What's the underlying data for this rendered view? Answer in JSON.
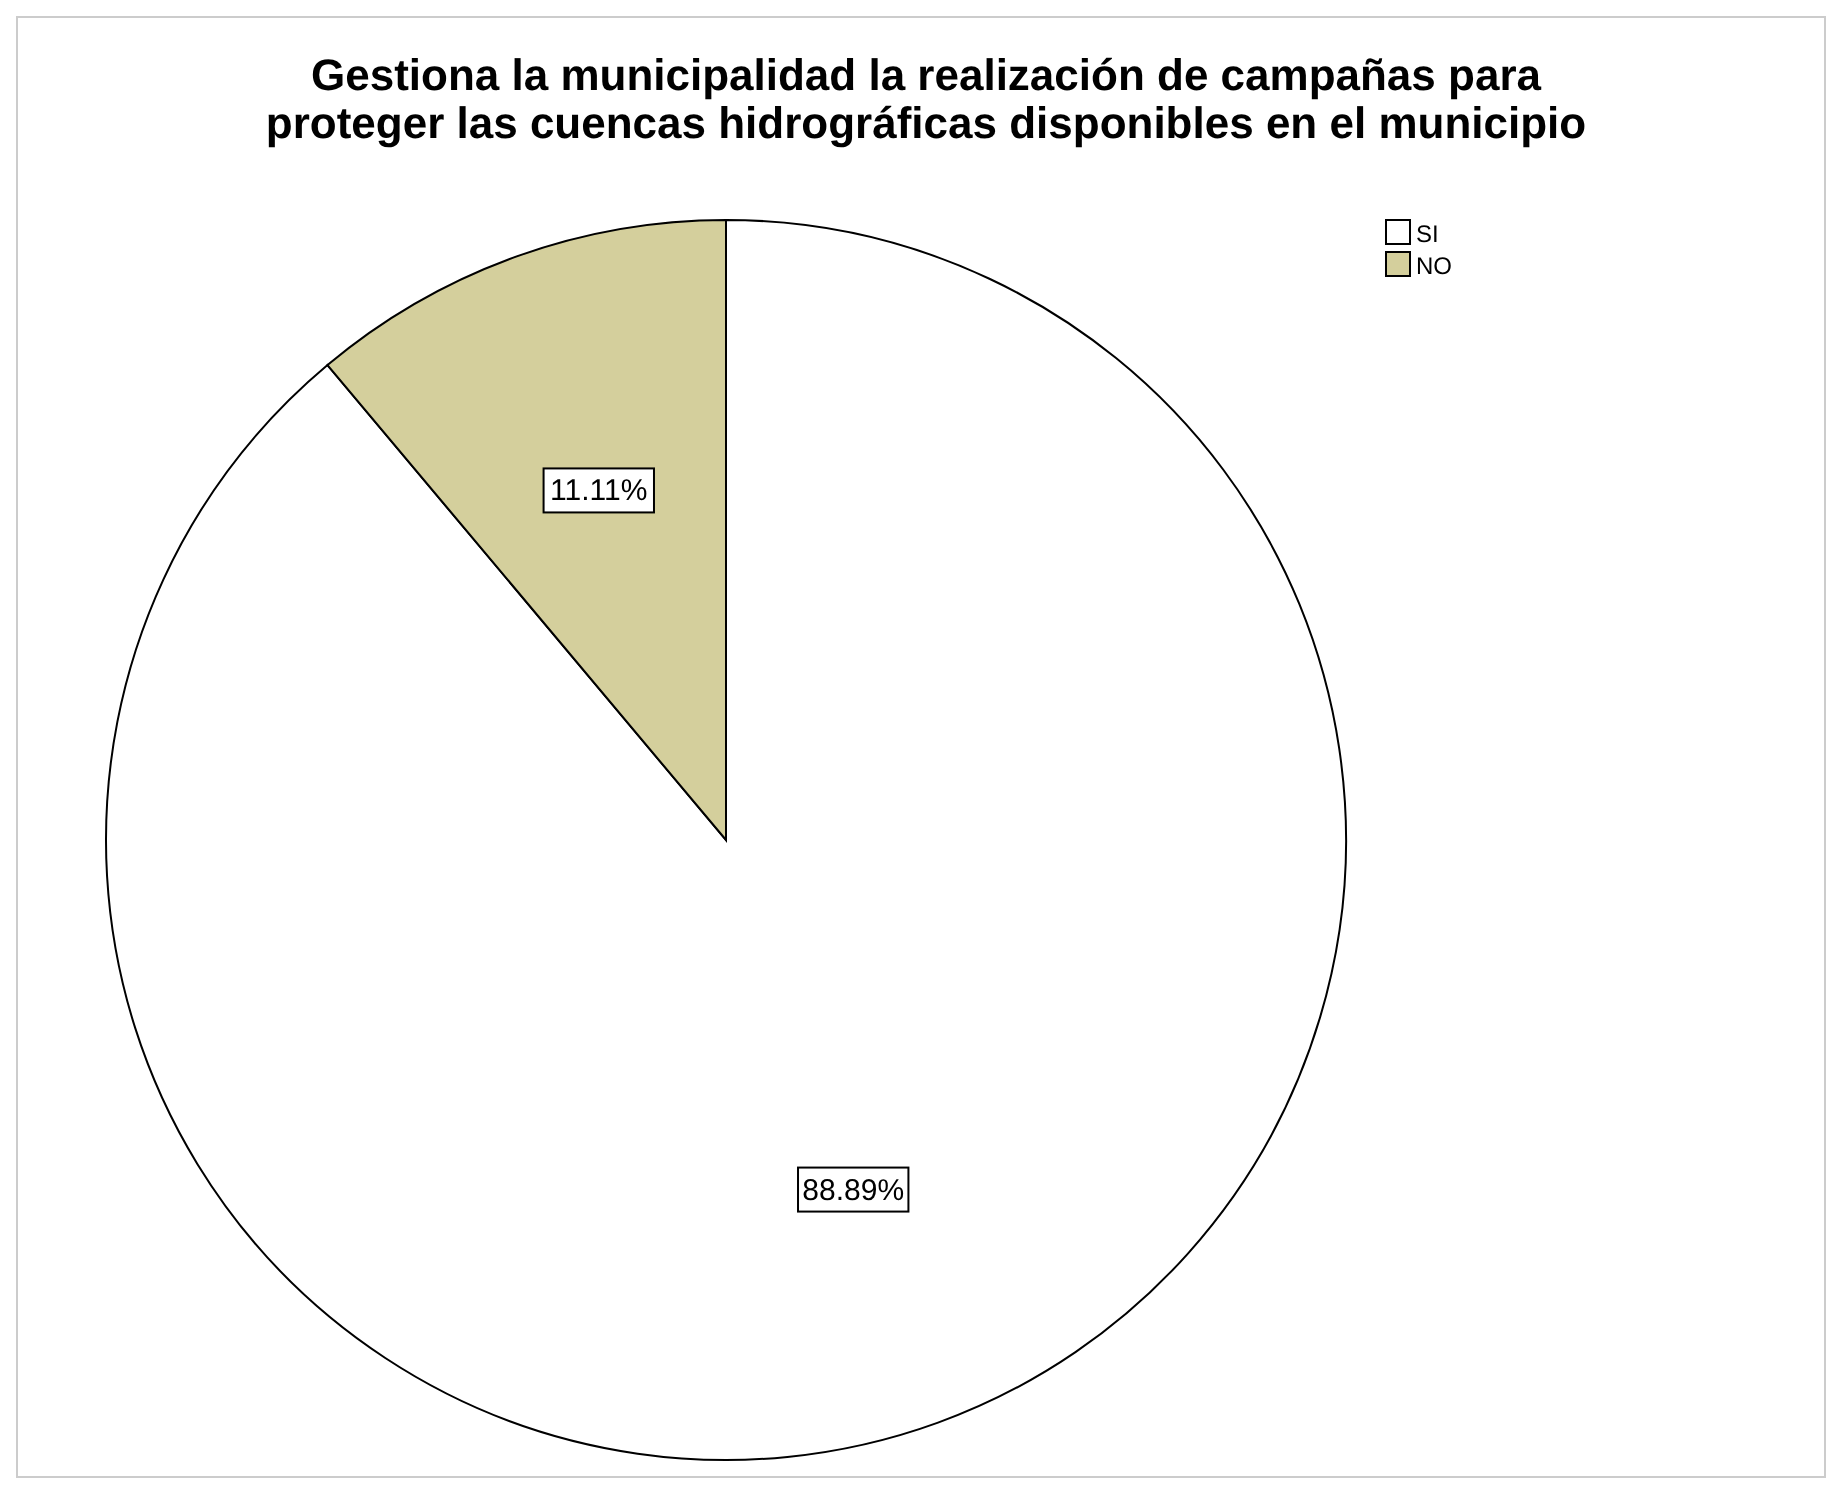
{
  "chart_data": {
    "type": "pie",
    "title": "Gestiona la municipalidad la realización de campañas para proteger las cuencas hidrográficas disponibles en el municipio",
    "categories": [
      "SI",
      "NO"
    ],
    "values": [
      88.89,
      11.11
    ],
    "colors": [
      "#ffffff",
      "#d4cf9c"
    ],
    "value_labels": [
      "88.89%",
      "11.11%"
    ],
    "legend": "top right"
  }
}
